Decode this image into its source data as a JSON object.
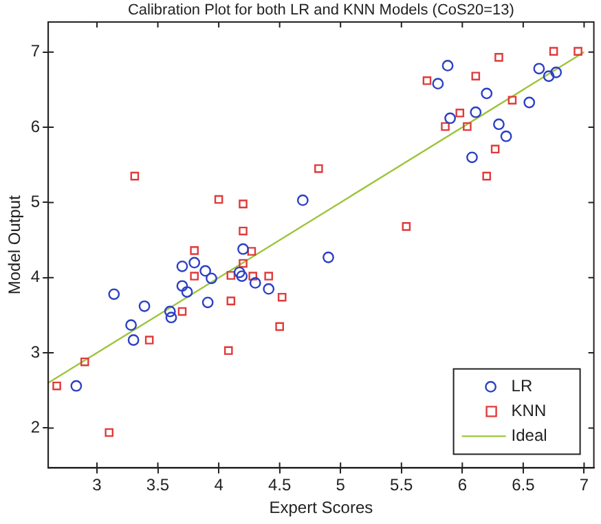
{
  "chart_data": {
    "type": "scatter",
    "title": "Calibration Plot for both LR and KNN Models (CoS20=13)",
    "xlabel": "Expert Scores",
    "ylabel": "Model Output",
    "xlim": [
      2.6,
      7.08
    ],
    "ylim": [
      1.47,
      7.4
    ],
    "xticks": [
      3,
      3.5,
      4,
      4.5,
      5,
      5.5,
      6,
      6.5,
      7
    ],
    "yticks": [
      2,
      3,
      4,
      5,
      6,
      7
    ],
    "grid": false,
    "legend": "bottom right",
    "series": [
      {
        "name": "LR",
        "marker": "circle",
        "color": "#2b3fc4",
        "x": [
          4.69,
          4.9,
          4.2,
          3.7,
          3.8,
          3.89,
          3.94,
          4.17,
          4.19,
          4.3,
          4.41,
          3.7,
          3.74,
          3.14,
          3.39,
          3.91,
          3.28,
          3.3,
          3.6,
          3.61,
          2.83,
          5.88,
          5.8,
          6.2,
          6.11,
          5.9,
          6.3,
          6.36,
          6.55,
          6.63,
          6.71,
          6.77,
          6.08
        ],
        "values": [
          5.03,
          4.27,
          4.38,
          4.15,
          4.2,
          4.09,
          3.99,
          4.07,
          4.02,
          3.93,
          3.85,
          3.89,
          3.81,
          3.78,
          3.62,
          3.67,
          3.37,
          3.17,
          3.55,
          3.47,
          2.56,
          6.82,
          6.58,
          6.45,
          6.2,
          6.12,
          6.04,
          5.88,
          6.33,
          6.78,
          6.68,
          6.73,
          5.6
        ]
      },
      {
        "name": "KNN",
        "marker": "square",
        "color": "#e03a3a",
        "x": [
          3.31,
          4.0,
          4.2,
          4.2,
          3.8,
          4.27,
          4.2,
          3.8,
          4.1,
          4.28,
          4.41,
          4.82,
          4.52,
          4.1,
          3.7,
          3.43,
          2.9,
          2.67,
          3.1,
          4.08,
          4.5,
          5.71,
          6.3,
          6.11,
          6.75,
          6.95,
          5.98,
          5.86,
          6.04,
          6.41,
          6.27,
          6.2,
          5.54
        ],
        "values": [
          5.35,
          5.04,
          4.98,
          4.62,
          4.36,
          4.35,
          4.19,
          4.02,
          4.03,
          4.02,
          4.02,
          5.45,
          3.74,
          3.69,
          3.55,
          3.17,
          2.88,
          2.56,
          1.94,
          3.03,
          3.35,
          6.62,
          6.93,
          6.68,
          7.01,
          7.01,
          6.19,
          6.01,
          6.01,
          6.36,
          5.71,
          5.35,
          4.68
        ]
      },
      {
        "name": "Ideal",
        "type": "line",
        "marker": "none",
        "line_style": "solid",
        "color": "#9cc43a",
        "x": [
          2.6,
          7
        ],
        "values": [
          2.6,
          7
        ]
      }
    ]
  }
}
